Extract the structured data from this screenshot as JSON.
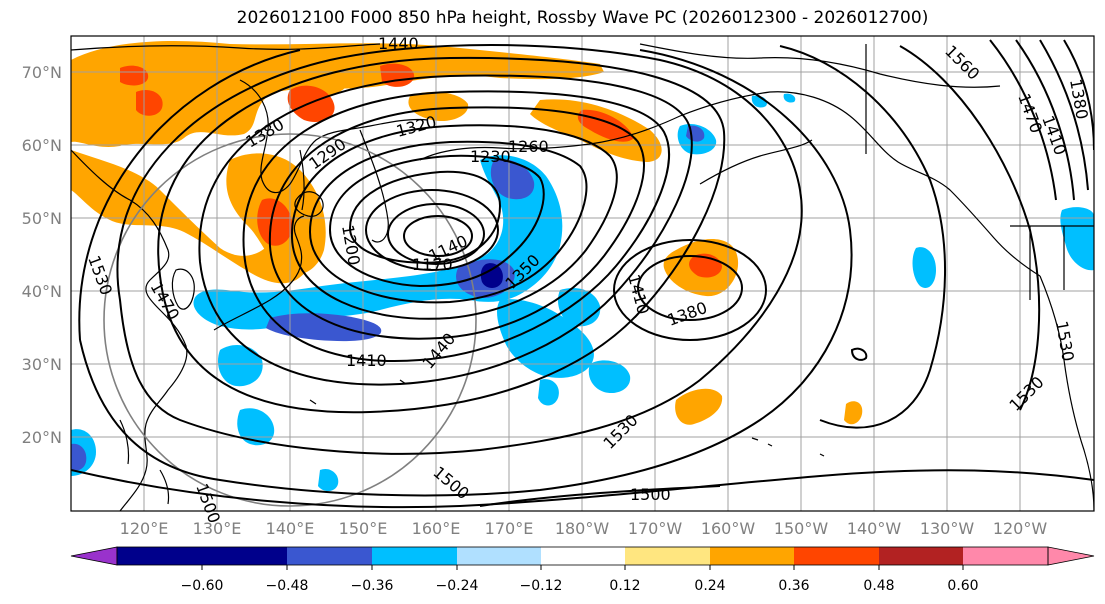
{
  "title": "2026012100 F000 850 hPa height, Rossby Wave PC (2026012300 - 2026012700)",
  "latitude_labels": [
    "70°N",
    "60°N",
    "50°N",
    "40°N",
    "30°N",
    "20°N"
  ],
  "longitude_labels": [
    "120°E",
    "130°E",
    "140°E",
    "150°E",
    "160°E",
    "170°E",
    "180°W",
    "170°W",
    "160°W",
    "150°W",
    "140°W",
    "130°W",
    "120°W"
  ],
  "contour_labels": [
    "1440",
    "1380",
    "1320",
    "1290",
    "1260",
    "1230",
    "1200",
    "1140",
    "1170",
    "1350",
    "1410",
    "1380",
    "1410",
    "1440",
    "1500",
    "1530",
    "1500",
    "1530",
    "1560",
    "1530",
    "1530",
    "1470",
    "1410",
    "1380",
    "1470",
    "1500"
  ],
  "colorbar": {
    "ticks": [
      "−0.60",
      "−0.48",
      "−0.36",
      "−0.24",
      "−0.12",
      "0.12",
      "0.24",
      "0.36",
      "0.48",
      "0.60"
    ],
    "colors": [
      "#9932cc",
      "#00008b",
      "#3a57d0",
      "#00bfff",
      "#b0e0ff",
      "#ffffff",
      "#ffe680",
      "#ffa500",
      "#ff4500",
      "#b22222",
      "#ff88aa",
      "#ff88aa"
    ]
  },
  "colors": {
    "contour": "#000000",
    "grid": "#a0a0a0",
    "coast": "#000000",
    "label_gray": "#808080"
  }
}
